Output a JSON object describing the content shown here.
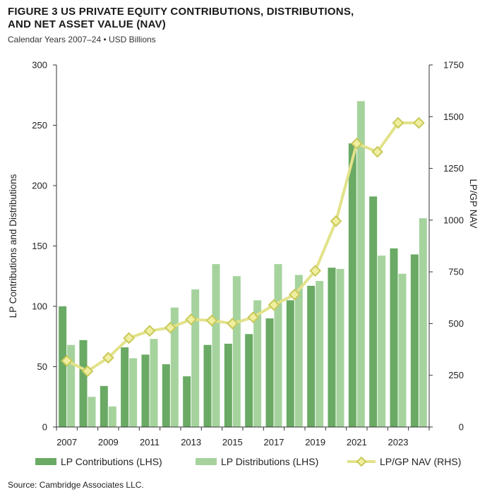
{
  "header": {
    "title_line1": "FIGURE 3   US PRIVATE EQUITY CONTRIBUTIONS, DISTRIBUTIONS,",
    "title_line2": "AND NET ASSET VALUE (NAV)",
    "subtitle": "Calendar Years 2007–24 • USD Billions"
  },
  "footer": {
    "source": "Source: Cambridge Associates LLC."
  },
  "colors": {
    "contributions": "#6aaa64",
    "distributions": "#a6d39d",
    "nav_line": "#e2e28a",
    "nav_marker_fill": "#f0efa0",
    "nav_marker_stroke": "#c9c95a",
    "axis": "#333333"
  },
  "chart_data": {
    "type": "bar",
    "title": "US PRIVATE EQUITY CONTRIBUTIONS, DISTRIBUTIONS, AND NET ASSET VALUE (NAV)",
    "subtitle": "Calendar Years 2007–24 • USD Billions",
    "categories": [
      "2007",
      "2008",
      "2009",
      "2010",
      "2011",
      "2012",
      "2013",
      "2014",
      "2015",
      "2016",
      "2017",
      "2018",
      "2019",
      "2020",
      "2021",
      "2022",
      "2023",
      "2024"
    ],
    "x_tick_labels": [
      "2007",
      "",
      "2009",
      "",
      "2011",
      "",
      "2013",
      "",
      "2015",
      "",
      "2017",
      "",
      "2019",
      "",
      "2021",
      "",
      "2023",
      ""
    ],
    "ylabel_left": "LP Contributions and Distributions",
    "ylabel_right": "LP/GP NAV",
    "ylim_left": [
      0,
      300
    ],
    "yticks_left": [
      0,
      50,
      100,
      150,
      200,
      250,
      300
    ],
    "ylim_right": [
      0,
      1750
    ],
    "yticks_right": [
      0,
      250,
      500,
      750,
      1000,
      1250,
      1500,
      1750
    ],
    "grid": false,
    "legend_placement": "bottom",
    "series": [
      {
        "name": "LP Contributions (LHS)",
        "type": "bar",
        "axis": "left",
        "values": [
          100,
          72,
          34,
          66,
          60,
          52,
          42,
          68,
          69,
          77,
          90,
          105,
          117,
          132,
          235,
          191,
          148,
          143
        ]
      },
      {
        "name": "LP Distributions (LHS)",
        "type": "bar",
        "axis": "left",
        "values": [
          68,
          25,
          17,
          57,
          73,
          99,
          114,
          135,
          125,
          105,
          135,
          126,
          121,
          131,
          270,
          142,
          127,
          173
        ]
      },
      {
        "name": "LP/GP NAV (RHS)",
        "type": "line",
        "axis": "right",
        "marker": "diamond",
        "values": [
          320,
          270,
          335,
          430,
          465,
          480,
          520,
          515,
          500,
          530,
          590,
          640,
          755,
          995,
          1370,
          1330,
          1470,
          1470
        ]
      }
    ]
  }
}
